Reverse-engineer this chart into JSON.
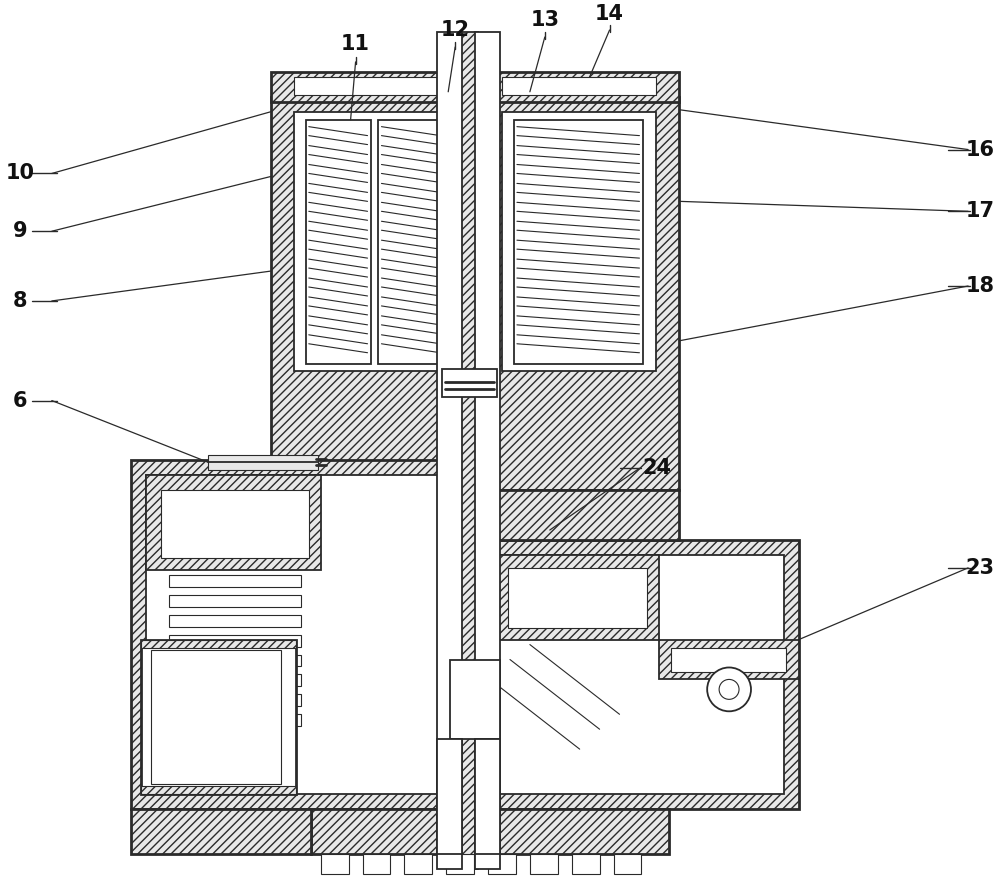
{
  "background_color": "#ffffff",
  "lc": "#2a2a2a",
  "hc": "#e8e8e8",
  "figsize": [
    10.0,
    8.84
  ],
  "dpi": 100,
  "lw_thick": 2.0,
  "lw_med": 1.3,
  "lw_thin": 0.8,
  "label_fontsize": 15,
  "label_fontweight": "bold",
  "label_color": "#111111"
}
